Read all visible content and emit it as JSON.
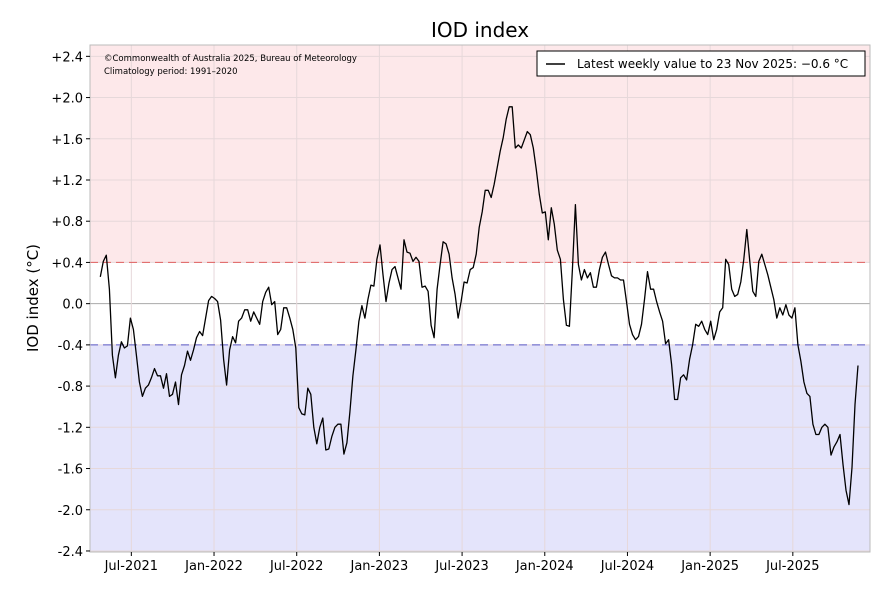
{
  "chart_data": {
    "type": "line",
    "title": "IOD index",
    "ylabel": "IOD index (°C)",
    "xlabel": "",
    "copyright": "©Commonwealth of Australia 2025, Bureau of Meteorology",
    "climatology": "Climatology period: 1991–2020",
    "legend": {
      "label": "Latest weekly value to 23 Nov 2025: −0.6 °C",
      "placement": "top-right"
    },
    "ylim": [
      -2.41,
      2.51
    ],
    "x_units": "months since Jan 2021",
    "xlim": [
      3.0,
      59.6
    ],
    "series_start_x": 3.75,
    "series_end_x": 58.73,
    "yticks": [
      {
        "value": 2.4,
        "label": "+2.4"
      },
      {
        "value": 2.0,
        "label": "+2.0"
      },
      {
        "value": 1.6,
        "label": "+1.6"
      },
      {
        "value": 1.2,
        "label": "+1.2"
      },
      {
        "value": 0.8,
        "label": "+0.8"
      },
      {
        "value": 0.4,
        "label": "+0.4"
      },
      {
        "value": 0.0,
        "label": "0.0"
      },
      {
        "value": -0.4,
        "label": "-0.4"
      },
      {
        "value": -0.8,
        "label": "-0.8"
      },
      {
        "value": -1.2,
        "label": "-1.2"
      },
      {
        "value": -1.6,
        "label": "-1.6"
      },
      {
        "value": -2.0,
        "label": "-2.0"
      },
      {
        "value": -2.4,
        "label": "-2.4"
      }
    ],
    "xticks": [
      {
        "value": 6,
        "label": "Jul-2021"
      },
      {
        "value": 12,
        "label": "Jan-2022"
      },
      {
        "value": 18,
        "label": "Jul-2022"
      },
      {
        "value": 24,
        "label": "Jan-2023"
      },
      {
        "value": 30,
        "label": "Jul-2023"
      },
      {
        "value": 36,
        "label": "Jan-2024"
      },
      {
        "value": 42,
        "label": "Jul-2024"
      },
      {
        "value": 48,
        "label": "Jan-2025"
      },
      {
        "value": 54,
        "label": "Jul-2025"
      }
    ],
    "thresholds": {
      "positive": 0.4,
      "negative": -0.4
    },
    "colors": {
      "positive_zone": "#fde8ea",
      "negative_zone": "#e4e4fb",
      "positive_line": "#e06060",
      "negative_line": "#5a5ac8",
      "series": "#000000"
    },
    "values": [
      0.26,
      0.41,
      0.47,
      0.14,
      -0.5,
      -0.72,
      -0.5,
      -0.37,
      -0.43,
      -0.41,
      -0.14,
      -0.25,
      -0.5,
      -0.76,
      -0.9,
      -0.82,
      -0.79,
      -0.72,
      -0.63,
      -0.7,
      -0.7,
      -0.82,
      -0.68,
      -0.9,
      -0.88,
      -0.76,
      -0.98,
      -0.69,
      -0.6,
      -0.46,
      -0.55,
      -0.45,
      -0.33,
      -0.27,
      -0.31,
      -0.14,
      0.03,
      0.07,
      0.05,
      0.02,
      -0.16,
      -0.54,
      -0.79,
      -0.45,
      -0.32,
      -0.38,
      -0.17,
      -0.14,
      -0.06,
      -0.06,
      -0.17,
      -0.08,
      -0.14,
      -0.2,
      0.02,
      0.11,
      0.16,
      -0.01,
      0.02,
      -0.3,
      -0.25,
      -0.04,
      -0.04,
      -0.14,
      -0.25,
      -0.43,
      -1.01,
      -1.07,
      -1.08,
      -0.82,
      -0.88,
      -1.2,
      -1.36,
      -1.2,
      -1.11,
      -1.42,
      -1.41,
      -1.29,
      -1.2,
      -1.17,
      -1.17,
      -1.46,
      -1.35,
      -1.05,
      -0.7,
      -0.45,
      -0.17,
      -0.02,
      -0.14,
      0.04,
      0.18,
      0.17,
      0.43,
      0.57,
      0.28,
      0.02,
      0.2,
      0.33,
      0.36,
      0.25,
      0.14,
      0.62,
      0.5,
      0.49,
      0.41,
      0.45,
      0.41,
      0.16,
      0.17,
      0.12,
      -0.21,
      -0.33,
      0.14,
      0.38,
      0.6,
      0.58,
      0.48,
      0.25,
      0.09,
      -0.14,
      0.02,
      0.21,
      0.2,
      0.33,
      0.35,
      0.48,
      0.74,
      0.89,
      1.1,
      1.1,
      1.03,
      1.16,
      1.32,
      1.48,
      1.61,
      1.79,
      1.91,
      1.91,
      1.51,
      1.54,
      1.51,
      1.59,
      1.67,
      1.64,
      1.51,
      1.3,
      1.06,
      0.88,
      0.89,
      0.62,
      0.93,
      0.77,
      0.52,
      0.43,
      0.04,
      -0.21,
      -0.22,
      0.33,
      0.96,
      0.38,
      0.23,
      0.33,
      0.25,
      0.3,
      0.16,
      0.16,
      0.33,
      0.45,
      0.5,
      0.38,
      0.27,
      0.25,
      0.25,
      0.23,
      0.23,
      0.02,
      -0.2,
      -0.3,
      -0.35,
      -0.32,
      -0.2,
      0.04,
      0.31,
      0.14,
      0.14,
      0.02,
      -0.08,
      -0.17,
      -0.39,
      -0.35,
      -0.59,
      -0.93,
      -0.93,
      -0.72,
      -0.69,
      -0.74,
      -0.54,
      -0.4,
      -0.2,
      -0.22,
      -0.17,
      -0.25,
      -0.3,
      -0.17,
      -0.35,
      -0.25,
      -0.08,
      -0.04,
      0.43,
      0.38,
      0.14,
      0.07,
      0.09,
      0.21,
      0.43,
      0.72,
      0.41,
      0.12,
      0.07,
      0.41,
      0.48,
      0.38,
      0.28,
      0.16,
      0.04,
      -0.14,
      -0.04,
      -0.11,
      -0.01,
      -0.11,
      -0.14,
      -0.04,
      -0.4,
      -0.56,
      -0.76,
      -0.87,
      -0.9,
      -1.17,
      -1.27,
      -1.27,
      -1.2,
      -1.17,
      -1.2,
      -1.47,
      -1.39,
      -1.34,
      -1.27,
      -1.56,
      -1.81,
      -1.95,
      -1.59,
      -0.98,
      -0.6
    ]
  }
}
